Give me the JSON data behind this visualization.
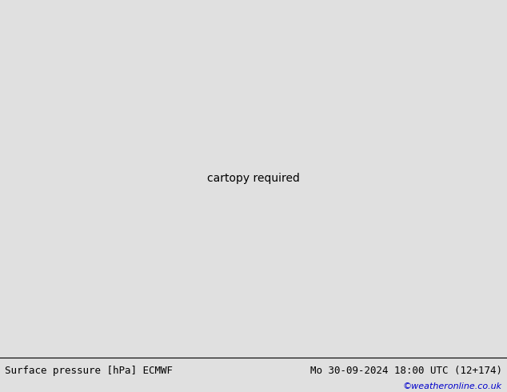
{
  "bottom_left_text": "Surface pressure [hPa] ECMWF",
  "bottom_right_text": "Mo 30-09-2024 18:00 UTC (12+174)",
  "watermark": "©weatheronline.co.uk",
  "land_color": "#c8e6b0",
  "ocean_color": "#c8c8c8",
  "border_color": "#808080",
  "contour_black": "#000000",
  "contour_blue": "#0000cd",
  "contour_red": "#ff0000",
  "bottom_bg": "#e0e0e0",
  "watermark_color": "#0000cc",
  "fig_width": 6.34,
  "fig_height": 4.9,
  "dpi": 100,
  "map_extent": [
    -25,
    75,
    -50,
    35
  ],
  "label_fs": 7
}
